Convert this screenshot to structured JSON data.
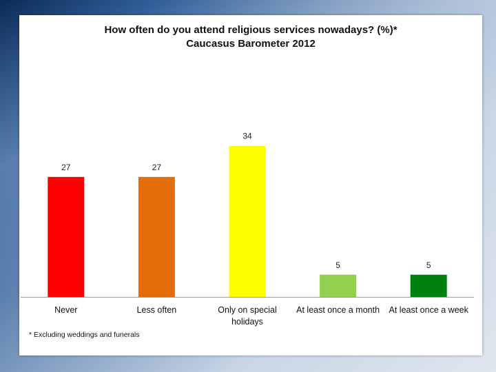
{
  "chart_data": {
    "type": "bar",
    "title": "How often do you attend religious services nowadays? (%)*",
    "subtitle": "Caucasus Barometer 2012",
    "categories": [
      "Never",
      "Less often",
      "Only on special holidays",
      "At least once a month",
      "At least once a week"
    ],
    "category_lines": [
      [
        "Never"
      ],
      [
        "Less often"
      ],
      [
        "Only on special",
        "holidays"
      ],
      [
        "At least once a month"
      ],
      [
        "At least once a week"
      ]
    ],
    "values": [
      27,
      27,
      34,
      5,
      5
    ],
    "value_labels": [
      "27",
      "27",
      "34",
      "5",
      "5"
    ],
    "colors": [
      "#ff0000",
      "#e46c0a",
      "#ffff00",
      "#92d050",
      "#00800f"
    ],
    "xlabel": "",
    "ylabel": "",
    "ylim": [
      0,
      40
    ],
    "grid": false,
    "legend": "none",
    "footnote": "* Excluding weddings and funerals"
  }
}
